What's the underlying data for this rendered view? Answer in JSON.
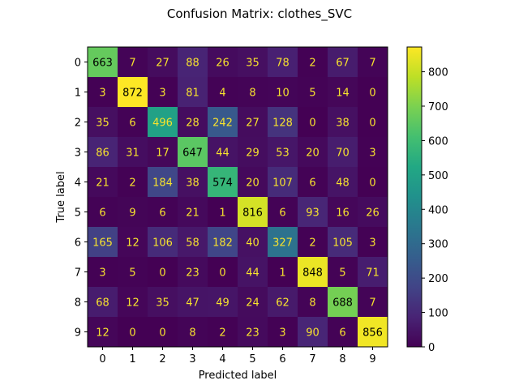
{
  "chart_data": {
    "type": "heatmap",
    "title": "Confusion Matrix: clothes_SVC",
    "xlabel": "Predicted label",
    "ylabel": "True label",
    "x_categories": [
      "0",
      "1",
      "2",
      "3",
      "4",
      "5",
      "6",
      "7",
      "8",
      "9"
    ],
    "y_categories": [
      "0",
      "1",
      "2",
      "3",
      "4",
      "5",
      "6",
      "7",
      "8",
      "9"
    ],
    "matrix": [
      [
        663,
        7,
        27,
        88,
        26,
        35,
        78,
        2,
        67,
        7
      ],
      [
        3,
        872,
        3,
        81,
        4,
        8,
        10,
        5,
        14,
        0
      ],
      [
        35,
        6,
        496,
        28,
        242,
        27,
        128,
        0,
        38,
        0
      ],
      [
        86,
        31,
        17,
        647,
        44,
        29,
        53,
        20,
        70,
        3
      ],
      [
        21,
        2,
        184,
        38,
        574,
        20,
        107,
        6,
        48,
        0
      ],
      [
        6,
        9,
        6,
        21,
        1,
        816,
        6,
        93,
        16,
        26
      ],
      [
        165,
        12,
        106,
        58,
        182,
        40,
        327,
        2,
        105,
        3
      ],
      [
        3,
        5,
        0,
        23,
        0,
        44,
        1,
        848,
        5,
        71
      ],
      [
        68,
        12,
        35,
        47,
        49,
        24,
        62,
        8,
        688,
        7
      ],
      [
        12,
        0,
        0,
        8,
        2,
        23,
        3,
        90,
        6,
        856
      ]
    ],
    "colormap": "viridis",
    "vmin": 0,
    "vmax": 872,
    "colorbar_ticks": [
      0,
      100,
      200,
      300,
      400,
      500,
      600,
      700,
      800
    ],
    "grid": false
  }
}
